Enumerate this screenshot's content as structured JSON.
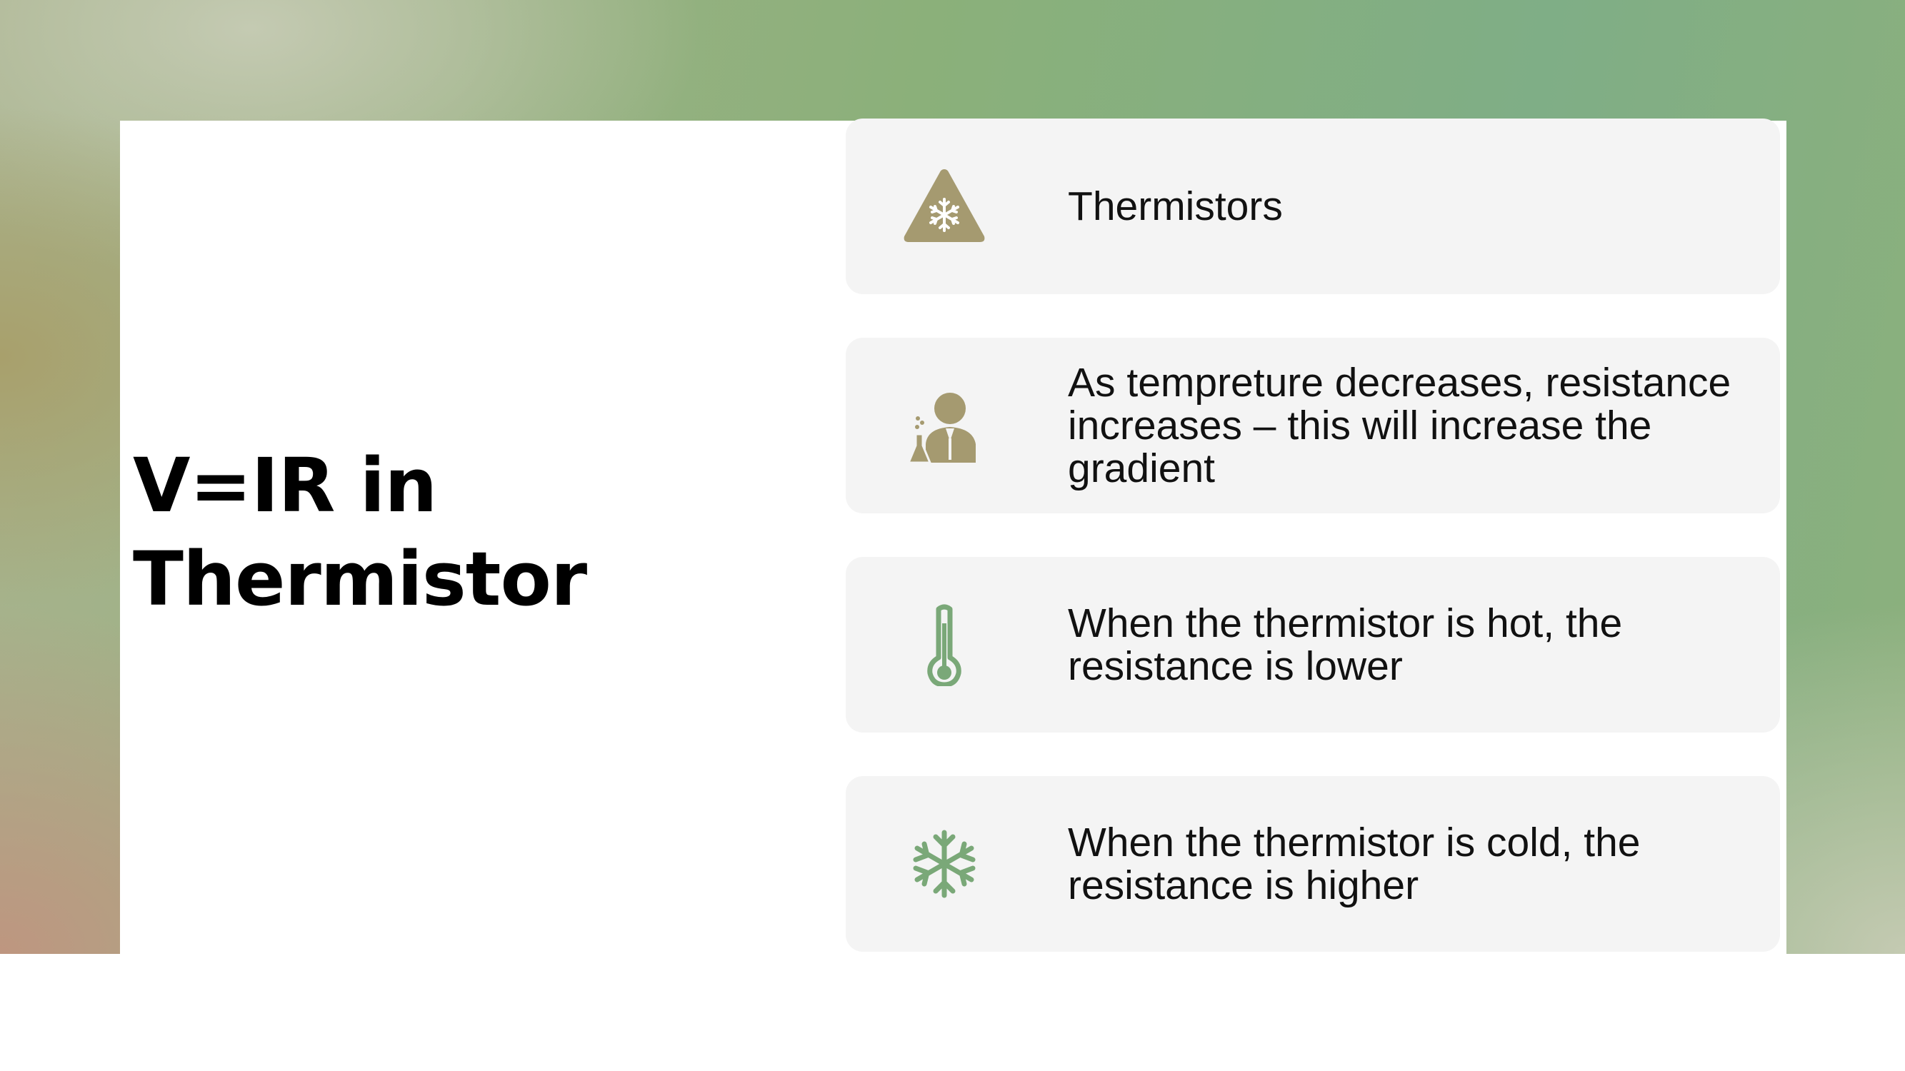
{
  "slide": {
    "title": "V=IR in Thermistor",
    "colors": {
      "gold_accent": "#a59a70",
      "green_accent": "#7aa878",
      "card_background": "#f4f4f4"
    },
    "cards": [
      {
        "icon": "triangle-snowflake-icon",
        "text": "Thermistors"
      },
      {
        "icon": "scientist-icon",
        "text": "As tempreture decreases, resistance increases – this will increase the gradient"
      },
      {
        "icon": "thermometer-icon",
        "text": "When the thermistor is hot, the resistance is lower"
      },
      {
        "icon": "snowflake-icon",
        "text": "When the thermistor is cold, the resistance is higher"
      }
    ]
  }
}
